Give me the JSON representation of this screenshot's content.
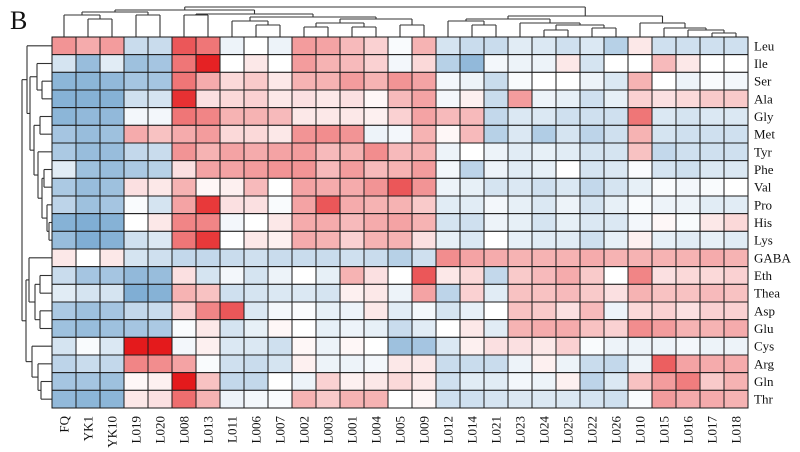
{
  "panel_label": "B",
  "chart_data": {
    "type": "heatmap",
    "title": "",
    "xlabel": "",
    "ylabel": "",
    "color_scale": {
      "low": "#4a8bc2",
      "mid": "#ffffff",
      "high": "#e41a1c",
      "range": [
        -3,
        3
      ]
    },
    "columns": [
      "FQ",
      "YK1",
      "YK10",
      "L019",
      "L020",
      "L008",
      "L013",
      "L011",
      "L006",
      "L007",
      "L002",
      "L003",
      "L001",
      "L004",
      "L005",
      "L009",
      "L012",
      "L014",
      "L021",
      "L023",
      "L024",
      "L025",
      "L022",
      "L026",
      "L010",
      "L015",
      "L016",
      "L017",
      "L018"
    ],
    "rows": [
      "Leu",
      "Ile",
      "Ser",
      "Ala",
      "Gly",
      "Met",
      "Tyr",
      "Phe",
      "Val",
      "Pro",
      "His",
      "Lys",
      "GABA",
      "Eth",
      "Thea",
      "Asp",
      "Glu",
      "Cys",
      "Arg",
      "Gln",
      "Thr"
    ],
    "values": [
      [
        1.4,
        1.1,
        1.3,
        -0.9,
        -0.9,
        2.2,
        1.8,
        -0.3,
        0.0,
        -0.3,
        1.3,
        1.2,
        0.9,
        0.6,
        -0.1,
        1.0,
        -0.7,
        -0.9,
        -0.9,
        -0.5,
        -0.6,
        -0.8,
        -0.6,
        -1.2,
        0.3,
        -0.8,
        -0.8,
        -0.8,
        -0.8
      ],
      [
        -0.7,
        -1.7,
        -0.5,
        -1.6,
        -1.5,
        1.8,
        2.9,
        0.0,
        0.3,
        0.0,
        1.3,
        1.0,
        0.9,
        0.6,
        -0.2,
        0.5,
        -1.2,
        -1.8,
        -0.2,
        -0.3,
        -0.3,
        0.3,
        -0.7,
        0.0,
        0.0,
        0.9,
        0.3,
        0.0,
        0.0
      ],
      [
        -1.9,
        -1.9,
        -1.8,
        -1.5,
        -1.5,
        1.8,
        1.1,
        0.5,
        0.7,
        0.3,
        1.0,
        1.0,
        1.3,
        1.0,
        1.4,
        1.2,
        -0.2,
        -0.3,
        -0.9,
        -0.1,
        0.0,
        0.0,
        -0.3,
        -0.6,
        1.0,
        0.0,
        -0.3,
        -0.1,
        -0.2
      ],
      [
        -2.0,
        -2.0,
        -2.0,
        -0.8,
        -0.7,
        2.7,
        0.4,
        0.5,
        0.6,
        0.3,
        0.4,
        0.3,
        0.4,
        0.1,
        0.9,
        1.2,
        -0.2,
        0.2,
        -0.9,
        1.3,
        -0.3,
        -0.4,
        -0.8,
        -0.4,
        0.6,
        0.4,
        0.5,
        0.7,
        0.7
      ],
      [
        -1.9,
        -1.8,
        -1.8,
        -0.2,
        -0.2,
        1.8,
        1.6,
        1.0,
        1.0,
        0.9,
        0.3,
        0.3,
        0.3,
        0.2,
        0.6,
        1.2,
        0.9,
        0.9,
        -1.0,
        -0.6,
        -0.6,
        -0.8,
        -0.8,
        -0.8,
        1.8,
        -0.6,
        -0.7,
        -0.6,
        -0.6
      ],
      [
        -1.5,
        -1.7,
        -1.6,
        1.1,
        0.8,
        1.1,
        1.3,
        0.5,
        0.5,
        0.3,
        1.4,
        1.5,
        1.4,
        -0.3,
        -0.2,
        1.0,
        0.1,
        0.9,
        -1.2,
        -0.6,
        -1.3,
        -0.7,
        -1.1,
        -0.8,
        1.0,
        -0.7,
        -0.8,
        -0.8,
        -0.8
      ],
      [
        -1.4,
        -1.7,
        -1.7,
        -1.0,
        -0.9,
        1.4,
        1.0,
        1.2,
        1.1,
        1.2,
        1.3,
        0.9,
        1.0,
        1.5,
        0.9,
        1.0,
        -0.3,
        0.0,
        -0.3,
        -0.5,
        -0.4,
        -0.5,
        -0.7,
        -0.7,
        0.8,
        -1.0,
        -0.8,
        -0.8,
        -0.8
      ],
      [
        -0.5,
        -1.6,
        -1.7,
        -1.4,
        -1.2,
        0.4,
        1.2,
        1.2,
        1.3,
        1.4,
        1.4,
        0.9,
        1.3,
        0.9,
        1.0,
        1.3,
        -0.2,
        -1.1,
        -0.3,
        -0.5,
        -0.4,
        0.0,
        -0.7,
        -0.6,
        -0.1,
        -0.7,
        -0.8,
        -0.6,
        -0.6
      ],
      [
        -1.4,
        -1.7,
        -1.6,
        0.4,
        0.3,
        1.0,
        0.1,
        0.2,
        0.9,
        0.0,
        1.2,
        1.1,
        1.1,
        1.4,
        2.2,
        1.4,
        -0.3,
        -0.4,
        -0.7,
        -0.6,
        -0.8,
        -0.6,
        -1.0,
        -0.7,
        -0.4,
        -0.1,
        -0.2,
        -0.1,
        0.0
      ],
      [
        -1.1,
        -1.6,
        -1.5,
        -0.1,
        -0.7,
        1.2,
        2.6,
        0.4,
        0.4,
        -0.1,
        1.2,
        2.2,
        1.1,
        1.0,
        1.0,
        0.7,
        -0.5,
        -0.5,
        -0.2,
        -0.4,
        -0.6,
        -0.3,
        -0.7,
        -0.4,
        -0.1,
        -0.3,
        -0.3,
        -0.5,
        -0.5
      ],
      [
        -2.0,
        -2.1,
        -2.0,
        0.0,
        0.3,
        1.6,
        1.6,
        -0.2,
        0.0,
        0.3,
        1.1,
        1.1,
        0.9,
        1.1,
        1.2,
        1.0,
        -0.7,
        -0.8,
        -0.3,
        -0.4,
        -0.7,
        -0.4,
        -0.6,
        -0.6,
        -0.2,
        0.1,
        -0.1,
        0.3,
        0.5
      ],
      [
        -1.7,
        -2.1,
        -2.0,
        -0.8,
        -0.6,
        1.8,
        2.6,
        0.0,
        0.3,
        0.2,
        1.1,
        1.0,
        0.6,
        1.0,
        1.0,
        0.4,
        -0.4,
        -0.6,
        0.0,
        -0.4,
        -0.5,
        -0.5,
        -0.8,
        -0.4,
        0.2,
        -0.4,
        -0.5,
        -0.4,
        -0.5
      ],
      [
        0.3,
        0.0,
        0.3,
        -0.7,
        -0.8,
        -1.0,
        -1.0,
        -0.9,
        -0.8,
        -0.9,
        -0.9,
        -0.9,
        -0.8,
        -0.9,
        -1.2,
        -0.8,
        1.5,
        1.2,
        1.1,
        1.0,
        1.0,
        1.0,
        1.1,
        1.0,
        1.0,
        1.0,
        1.0,
        1.1,
        1.0
      ],
      [
        -0.9,
        -1.5,
        -1.5,
        -1.8,
        -1.7,
        0.4,
        -0.7,
        -0.2,
        -0.7,
        -0.3,
        0.0,
        -0.4,
        1.0,
        0.4,
        0.0,
        2.2,
        0.3,
        0.5,
        -1.0,
        0.7,
        0.9,
        1.1,
        0.7,
        0.0,
        1.6,
        0.4,
        0.5,
        0.5,
        0.6
      ],
      [
        -0.5,
        -0.7,
        -0.7,
        -2.1,
        -2.0,
        1.0,
        0.8,
        -0.8,
        -0.7,
        -0.6,
        -0.6,
        -0.7,
        0.2,
        0.3,
        -0.3,
        1.2,
        -1.1,
        0.6,
        -0.5,
        0.8,
        0.8,
        0.9,
        0.7,
        0.4,
        1.0,
        0.8,
        0.8,
        0.9,
        0.8
      ],
      [
        -1.4,
        -1.6,
        -1.5,
        -1.0,
        -0.9,
        0.6,
        1.6,
        2.2,
        -0.6,
        -0.2,
        -0.1,
        -0.4,
        -0.3,
        0.3,
        -0.5,
        -0.2,
        -0.7,
        -0.4,
        0.0,
        0.8,
        0.7,
        0.4,
        0.9,
        -0.3,
        0.5,
        0.6,
        0.4,
        0.6,
        0.6
      ],
      [
        -1.6,
        -1.7,
        -1.6,
        -1.5,
        -1.4,
        -0.1,
        0.3,
        -0.7,
        -0.4,
        0.1,
        0.0,
        -0.4,
        -0.3,
        -0.4,
        -0.9,
        -0.5,
        -0.0,
        0.3,
        -0.5,
        1.0,
        1.1,
        1.1,
        0.8,
        0.6,
        1.5,
        1.3,
        1.0,
        1.0,
        1.1
      ],
      [
        -0.7,
        -0.1,
        -0.6,
        3.0,
        3.0,
        -0.2,
        0.2,
        -0.6,
        -0.6,
        -0.8,
        0.1,
        -0.3,
        0.1,
        0.0,
        -1.6,
        -1.5,
        -0.6,
        0.2,
        0.4,
        0.4,
        0.3,
        0.6,
        -0.1,
        -0.3,
        -0.3,
        -0.3,
        -0.2,
        -0.3,
        -0.3
      ],
      [
        -1.1,
        -0.9,
        -1.0,
        1.6,
        1.5,
        1.2,
        -0.1,
        -0.8,
        -0.9,
        -0.7,
        0.2,
        -0.3,
        -0.3,
        -0.2,
        0.3,
        0.3,
        -0.9,
        -0.9,
        -0.9,
        -0.3,
        0.2,
        -0.3,
        -0.9,
        -1.0,
        -0.3,
        2.1,
        1.2,
        1.1,
        1.1
      ],
      [
        -1.5,
        -1.5,
        -1.6,
        0.1,
        0.2,
        3.0,
        0.8,
        -1.0,
        -1.0,
        0.0,
        -0.3,
        0.6,
        0.2,
        0.3,
        0.5,
        0.3,
        -0.8,
        -0.5,
        -0.5,
        -0.2,
        -0.3,
        0.2,
        -1.1,
        -0.6,
        0.8,
        1.3,
        1.7,
        0.7,
        1.0
      ],
      [
        -1.8,
        -1.9,
        -1.9,
        0.3,
        0.4,
        1.9,
        1.0,
        -0.3,
        -0.2,
        -0.1,
        1.0,
        0.7,
        1.0,
        1.0,
        0.0,
        0.1,
        -0.8,
        -0.8,
        -0.7,
        -0.6,
        -0.6,
        -0.6,
        -0.7,
        -0.8,
        -0.1,
        1.3,
        1.1,
        1.1,
        1.0
      ]
    ],
    "legend": "none",
    "grid": true
  }
}
